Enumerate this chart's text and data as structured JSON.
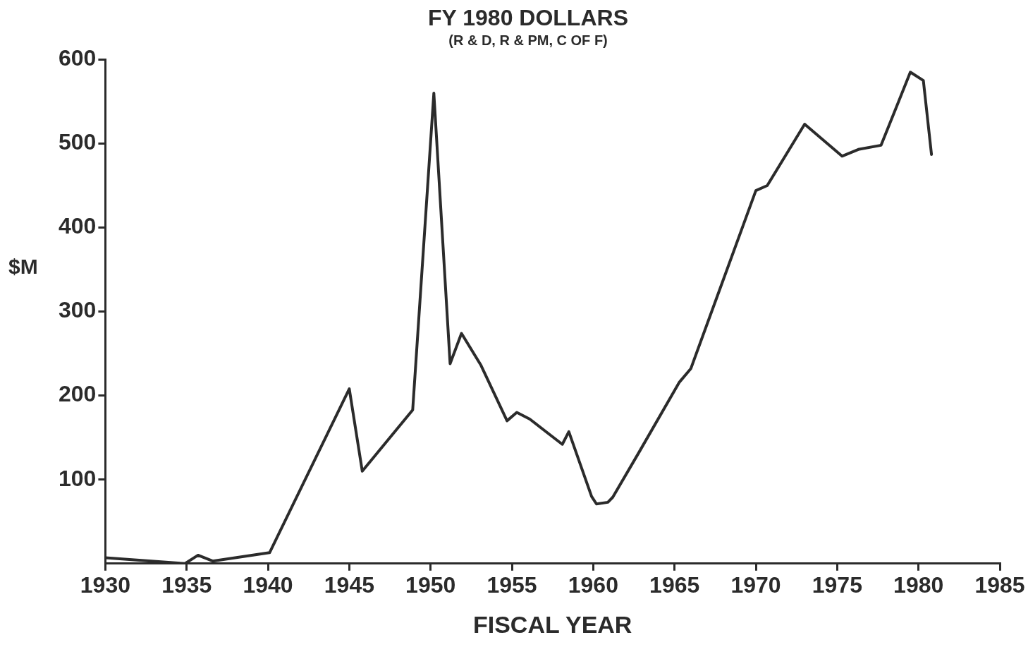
{
  "chart_data": {
    "type": "line",
    "title": "FY 1980 DOLLARS",
    "subtitle": "(R & D, R & PM, C OF F)",
    "xlabel": "FISCAL YEAR",
    "ylabel": "$M",
    "x": [
      1930.0,
      1934.9,
      1935.7,
      1936.6,
      1940.1,
      1945.0,
      1945.8,
      1948.9,
      1950.2,
      1951.2,
      1951.9,
      1953.1,
      1954.7,
      1955.3,
      1956.1,
      1958.1,
      1958.5,
      1959.9,
      1960.2,
      1960.9,
      1961.2,
      1962.8,
      1965.3,
      1966.0,
      1970.0,
      1970.7,
      1973.0,
      1975.3,
      1976.3,
      1977.7,
      1979.5,
      1980.3,
      1980.8
    ],
    "series": [
      {
        "color": "#2b2b2b",
        "values": [
          7,
          0,
          10,
          3,
          13,
          208,
          110,
          183,
          560,
          238,
          274,
          236,
          170,
          180,
          172,
          142,
          157,
          80,
          71,
          73,
          79,
          132,
          216,
          232,
          444,
          450,
          523,
          485,
          493,
          498,
          585,
          575,
          487
        ]
      }
    ],
    "xlim": [
      1930,
      1985
    ],
    "xticks": [
      1930,
      1935,
      1940,
      1945,
      1950,
      1955,
      1960,
      1965,
      1970,
      1975,
      1980,
      1985
    ],
    "ylim": [
      0,
      600
    ],
    "yticks": [
      100,
      200,
      300,
      400,
      500,
      600
    ],
    "grid": false,
    "legend": false,
    "marker": "none",
    "line_style": "solid"
  }
}
